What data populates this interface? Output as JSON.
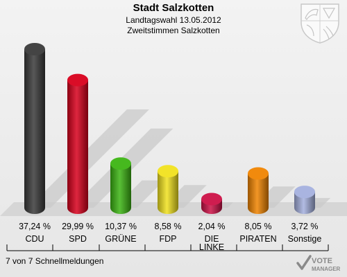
{
  "header": {
    "title": "Stadt Salzkotten",
    "subtitle1": "Landtagswahl 13.05.2012",
    "subtitle2": "Zweitstimmen Salzkotten"
  },
  "footer": {
    "status": "7 von 7 Schnellmeldungen"
  },
  "logo": {
    "line1": "VOTE",
    "line2": "MANAGER"
  },
  "chart_data": {
    "type": "bar",
    "categories": [
      "CDU",
      "SPD",
      "GRÜNE",
      "FDP",
      "DIE LINKE",
      "PIRATEN",
      "Sonstige"
    ],
    "values": [
      37.24,
      29.99,
      10.37,
      8.58,
      2.04,
      8.05,
      3.72
    ],
    "value_labels": [
      "37,24 %",
      "29,99 %",
      "10,37 %",
      "8,58 %",
      "2,04 %",
      "8,05 %",
      "3,72 %"
    ],
    "colors": [
      "#3a3a3a",
      "#d8001c",
      "#3cb512",
      "#f1e21e",
      "#cc1146",
      "#f08400",
      "#a4b0de"
    ],
    "ylim": [
      0,
      37.24
    ]
  }
}
